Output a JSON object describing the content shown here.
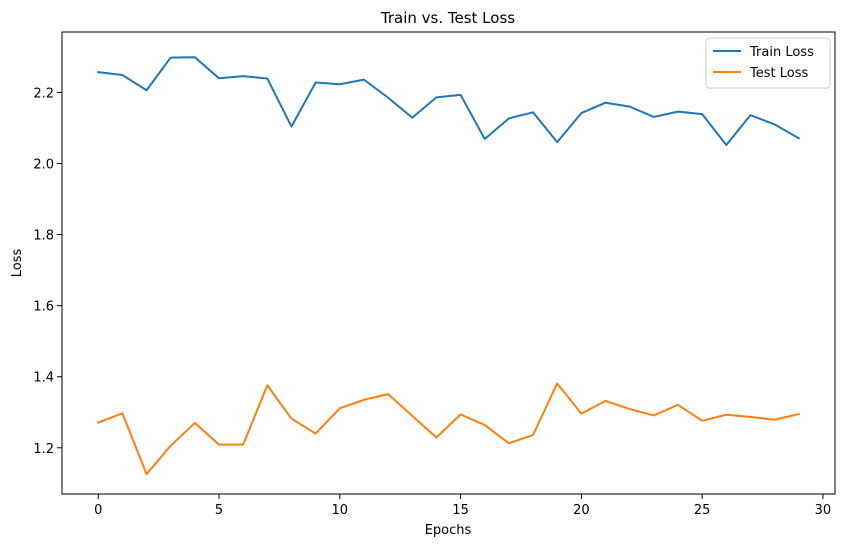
{
  "chart_data": {
    "type": "line",
    "title": "Train vs. Test Loss",
    "xlabel": "Epochs",
    "ylabel": "Loss",
    "xlim": [
      -1.5,
      30.5
    ],
    "ylim": [
      1.07,
      2.37
    ],
    "xticks": [
      0,
      5,
      10,
      15,
      20,
      25,
      30
    ],
    "yticks": [
      1.2,
      1.4,
      1.6,
      1.8,
      2.0,
      2.2
    ],
    "ytick_labels": [
      "1.2",
      "1.4",
      "1.6",
      "1.8",
      "2.0",
      "2.2"
    ],
    "grid": false,
    "legend_position": "top-right",
    "x": [
      0,
      1,
      2,
      3,
      4,
      5,
      6,
      7,
      8,
      9,
      10,
      11,
      12,
      13,
      14,
      15,
      16,
      17,
      18,
      19,
      20,
      21,
      22,
      23,
      24,
      25,
      26,
      27,
      28,
      29
    ],
    "series": [
      {
        "name": "Train Loss",
        "color": "#1f77b4",
        "values": [
          2.257,
          2.249,
          2.206,
          2.298,
          2.299,
          2.24,
          2.246,
          2.239,
          2.104,
          2.228,
          2.223,
          2.236,
          2.185,
          2.129,
          2.186,
          2.193,
          2.069,
          2.127,
          2.144,
          2.06,
          2.142,
          2.171,
          2.16,
          2.131,
          2.146,
          2.139,
          2.052,
          2.136,
          2.11,
          2.071
        ]
      },
      {
        "name": "Test Loss",
        "color": "#ff7f0e",
        "values": [
          1.271,
          1.297,
          1.126,
          1.206,
          1.27,
          1.209,
          1.209,
          1.376,
          1.282,
          1.24,
          1.311,
          1.335,
          1.351,
          1.29,
          1.229,
          1.294,
          1.264,
          1.213,
          1.236,
          1.381,
          1.296,
          1.332,
          1.309,
          1.291,
          1.321,
          1.276,
          1.293,
          1.287,
          1.279,
          1.295
        ]
      }
    ]
  }
}
